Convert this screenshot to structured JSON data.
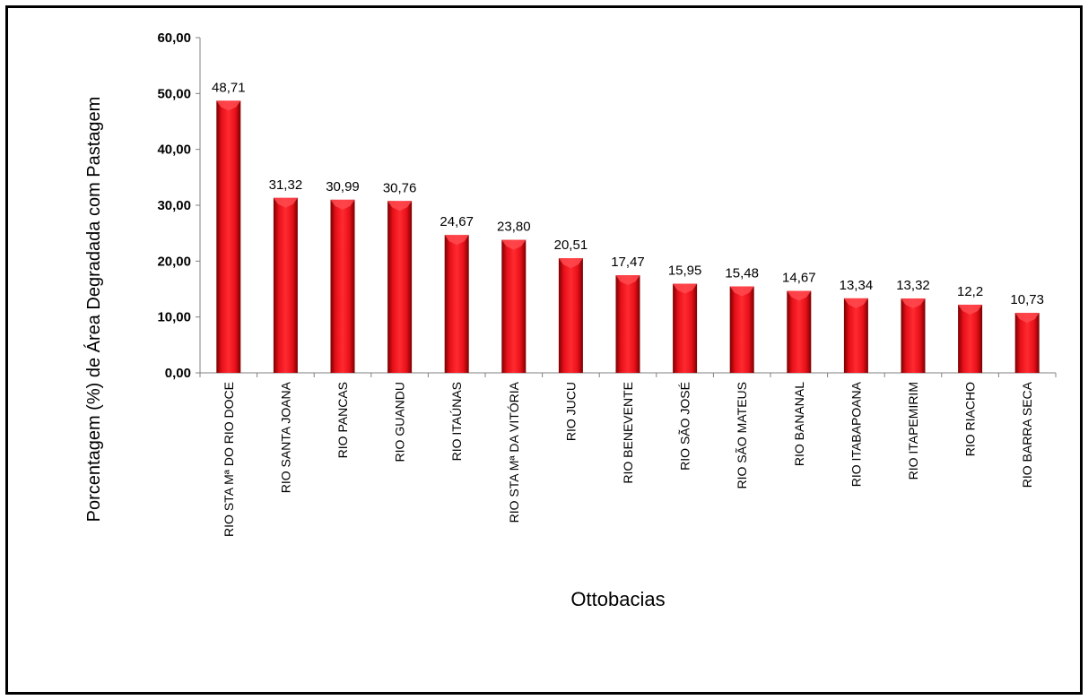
{
  "chart_data": {
    "type": "bar",
    "title": "",
    "xlabel": "Ottobacias",
    "ylabel": "Porcentagem (%) de Área Degradada com Pastagem",
    "ylim": [
      0,
      60
    ],
    "yticks": [
      "0,00",
      "10,00",
      "20,00",
      "30,00",
      "40,00",
      "50,00",
      "60,00"
    ],
    "grid": false,
    "legend": "none",
    "bar_color": "#e8101a",
    "bar_dark": "#8c0000",
    "categories": [
      "RIO STA Mª DO RIO DOCE",
      "RIO SANTA JOANA",
      "RIO PANCAS",
      "RIO GUANDU",
      "RIO ITAÚNAS",
      "RIO STA Mª DA VITÓRIA",
      "RIO JUCU",
      "RIO BENEVENTE",
      "RIO SÃO JOSÉ",
      "RIO SÃO MATEUS",
      "RIO BANANAL",
      "RIO ITABAPOANA",
      "RIO ITAPEMIRIM",
      "RIO RIACHO",
      "RIO BARRA SECA"
    ],
    "values": [
      48.71,
      31.32,
      30.99,
      30.76,
      24.67,
      23.8,
      20.51,
      17.47,
      15.95,
      15.48,
      14.67,
      13.34,
      13.32,
      12.2,
      10.73
    ],
    "data_labels": [
      "48,71",
      "31,32",
      "30,99",
      "30,76",
      "24,67",
      "23,80",
      "20,51",
      "17,47",
      "15,95",
      "15,48",
      "14,67",
      "13,34",
      "13,32",
      "12,2",
      "10,73"
    ]
  }
}
